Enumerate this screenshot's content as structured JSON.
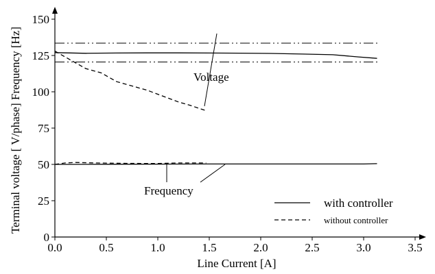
{
  "chart_data": {
    "type": "line",
    "xlabel": "Line Current [A]",
    "ylabel": "Terminal voltage [ V/phase] Frequency [Hz]",
    "xlim": [
      0,
      3.5
    ],
    "ylim": [
      0,
      150
    ],
    "xticks": [
      "0.0",
      "0.5",
      "1.0",
      "1.5",
      "2.0",
      "2.5",
      "3.0",
      "3.5"
    ],
    "yticks": [
      "0",
      "25",
      "50",
      "75",
      "100",
      "125",
      "150"
    ],
    "grid": false,
    "legend_position": "bottom-right",
    "legend": [
      {
        "label": "with controller",
        "style": "solid"
      },
      {
        "label": "without controller",
        "style": "dashed"
      }
    ],
    "reference_lines": [
      {
        "y": 133.5,
        "style": "dash-dot-dot"
      },
      {
        "y": 120.5,
        "style": "dash-dot-dot"
      }
    ],
    "annotations": [
      {
        "text": "Voltage",
        "x": 1.85,
        "y": 110
      },
      {
        "text": "Frequency",
        "x": 1.25,
        "y": 34
      }
    ],
    "series": [
      {
        "style": "solid",
        "x": [
          0.0,
          0.3,
          0.6,
          0.9,
          1.2,
          1.5,
          1.8,
          2.1,
          2.4,
          2.7,
          2.95,
          3.13
        ],
        "y": [
          127,
          126.5,
          126.7,
          126.8,
          126.8,
          126.7,
          126.6,
          126.4,
          126,
          125.5,
          124,
          123
        ]
      },
      {
        "style": "dashed",
        "x": [
          0.0,
          0.15,
          0.3,
          0.45,
          0.6,
          0.75,
          0.9,
          1.05,
          1.2,
          1.3,
          1.47
        ],
        "y": [
          128,
          122,
          116,
          113,
          107,
          104,
          101,
          97,
          93,
          91,
          87
        ]
      },
      {
        "style": "solid",
        "x": [
          0.0,
          0.5,
          1.0,
          1.5,
          2.0,
          2.5,
          3.0,
          3.13
        ],
        "y": [
          50,
          50.1,
          50.2,
          50.3,
          50.3,
          50.3,
          50.3,
          50.5
        ]
      },
      {
        "style": "dashed",
        "x": [
          0.0,
          0.1,
          0.2,
          0.4,
          0.7,
          1.0,
          1.2,
          1.47
        ],
        "y": [
          50,
          51,
          51.3,
          51,
          50.7,
          50.6,
          51,
          51
        ]
      }
    ]
  }
}
